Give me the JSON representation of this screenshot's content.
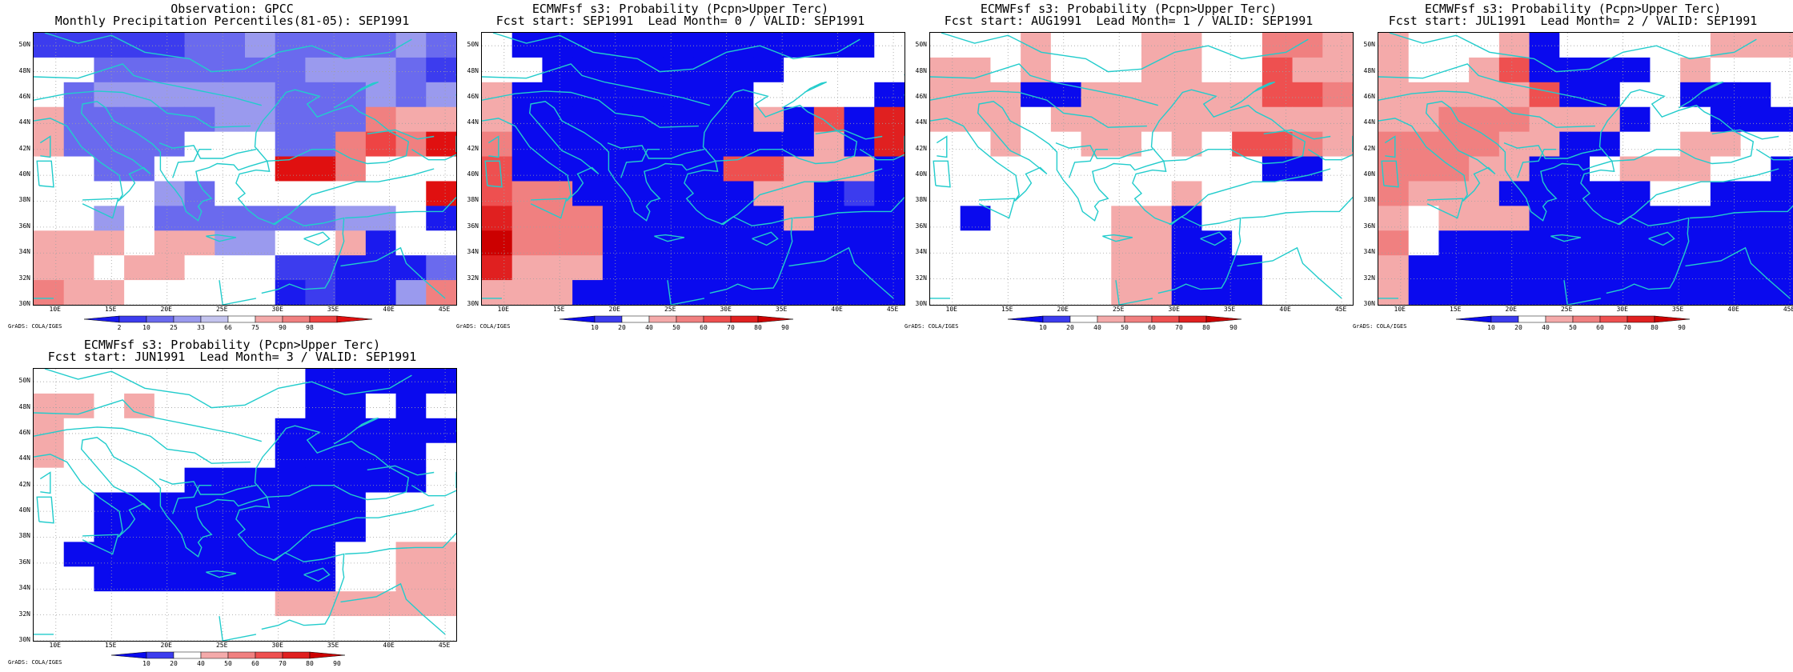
{
  "grads_label": "GrADS: COLA/IGES",
  "lat_labels": [
    "50N",
    "48N",
    "46N",
    "44N",
    "42N",
    "40N",
    "38N",
    "36N",
    "34N",
    "32N",
    "30N"
  ],
  "lon_labels": [
    "10E",
    "15E",
    "20E",
    "25E",
    "30E",
    "35E",
    "40E",
    "45E"
  ],
  "colors": {
    "coast": "#22cccc",
    "grid": "#a0a0a0",
    "obs_palette": [
      "#1a1aee",
      "#3c3cee",
      "#6a6aee",
      "#9a9aee",
      "#c4c4ee",
      "#ffffff",
      "#f4aaaa",
      "#f08080",
      "#ee4444",
      "#e01010"
    ],
    "prob_palette": [
      "#0a0aee",
      "#3c3cee",
      "#ffffff",
      "#f4aaaa",
      "#f08080",
      "#ee5050",
      "#e02020",
      "#cc0000"
    ]
  },
  "panels": [
    {
      "title_line1": "Observation: GPCC",
      "title_line2": "Monthly Precipitation Percentiles(81-05): SEP1991",
      "colorbar_labels": [
        "2",
        "10",
        "25",
        "33",
        "66",
        "75",
        "90",
        "98"
      ],
      "palette": "obs",
      "grid_levels": [
        "11111223222232",
        "55222222233321",
        "52333333222323",
        "62222233222766",
        "62222555227879",
        "55225555997555",
        "55553255555559",
        "55352222223350",
        "66656633556055",
        "66566555110002",
        "76655555010037"
      ]
    },
    {
      "title_line1": "ECMWFsf s3: Probability (Pcpn>Upper Terc)",
      "title_line2": "Fcst start: SEP1991  Lead Month= 0 / VALID: SEP1991",
      "colorbar_labels": [
        "10",
        "20",
        "40",
        "50",
        "60",
        "70",
        "80",
        "90"
      ],
      "palette": "prob",
      "grid_levels": [
        "20000000000002",
        "22000000002222",
        "30000000022220",
        "30000000030506",
        "40000000000306",
        "50000000553330",
        "54400000033010",
        "64440000003000",
        "74440000000000",
        "63330000000000",
        "33300000000000"
      ]
    },
    {
      "title_line1": "ECMWFsf s3: Probability (Pcpn>Upper Terc)",
      "title_line2": "Fcst start: AUG1991  Lead Month= 1 / VALID: SEP1991",
      "colorbar_labels": [
        "10",
        "20",
        "40",
        "50",
        "60",
        "70",
        "80",
        "90"
      ],
      "palette": "prob",
      "grid_levels": [
        "22232223322443",
        "33232223322533",
        "33300333333554",
        "33323333333333",
        "22322332325543",
        "22222222222002",
        "22222222322222",
        "20222233022222",
        "22222233002222",
        "22222233000222",
        "22222233000222"
      ]
    },
    {
      "title_line1": "ECMWFsf s3: Probability (Pcpn>Upper Terc)",
      "title_line2": "Fcst start: JUL1991  Lead Month= 2 / VALID: SEP1991",
      "colorbar_labels": [
        "10",
        "20",
        "40",
        "50",
        "60",
        "70",
        "80",
        "90"
      ],
      "palette": "prob",
      "grid_levels": [
        "32223022222333",
        "32235000023222",
        "33333500220002",
        "33444333022000",
        "44443300223322",
        "44433002333220",
        "43330000022000",
        "32333000000000",
        "42000000000000",
        "30000000000000",
        "30000000000000"
      ]
    },
    {
      "title_line1": "ECMWFsf s3: Probability (Pcpn>Upper Terc)",
      "title_line2": "Fcst start: JUN1991  Lead Month= 3 / VALID: SEP1991",
      "colorbar_labels": [
        "10",
        "20",
        "40",
        "50",
        "60",
        "70",
        "80",
        "90"
      ],
      "palette": "prob",
      "grid_levels": [
        "22222222200000",
        "33232222200202",
        "32222222000000",
        "32222222000002",
        "22222000000002",
        "22000000000222",
        "22000000000222",
        "20000000002233",
        "22000000002233",
        "22222222333333",
        "22222222222222"
      ]
    }
  ]
}
